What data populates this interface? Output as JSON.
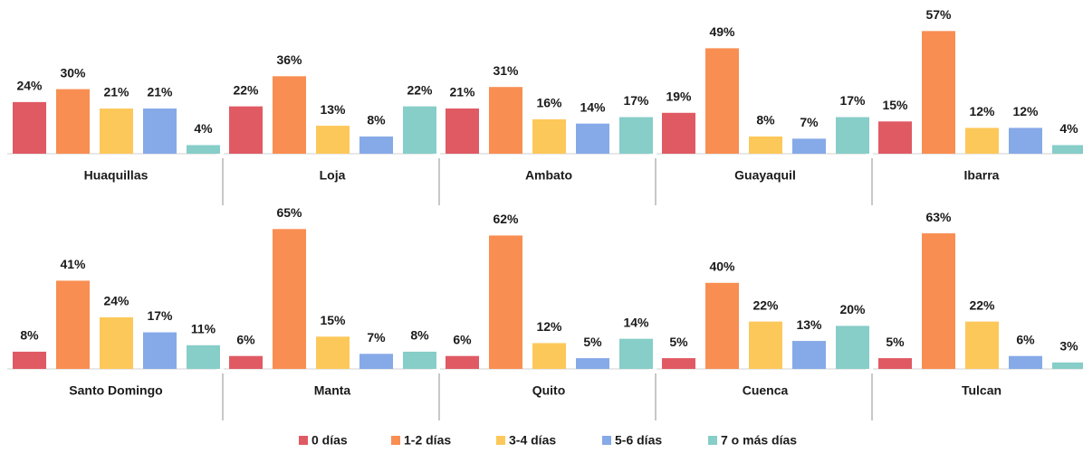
{
  "chart_data": {
    "type": "bar",
    "categories": [
      "Huaquillas",
      "Loja",
      "Ambato",
      "Guayaquil",
      "Ibarra",
      "Santo Domingo",
      "Manta",
      "Quito",
      "Cuenca",
      "Tulcan"
    ],
    "series": [
      {
        "name": "0 días",
        "color": "#e05a63",
        "values": [
          24,
          22,
          21,
          19,
          15,
          8,
          6,
          6,
          5,
          5
        ],
        "value_labels": [
          "24%",
          "22%",
          "21%",
          "19%",
          "15%",
          "8%",
          "6%",
          "6%",
          "5%",
          "5%"
        ]
      },
      {
        "name": "1-2 días",
        "color": "#f98e52",
        "values": [
          30,
          36,
          31,
          49,
          57,
          41,
          65,
          62,
          40,
          63
        ],
        "value_labels": [
          "30%",
          "36%",
          "31%",
          "49%",
          "57%",
          "41%",
          "65%",
          "62%",
          "40%",
          "63%"
        ]
      },
      {
        "name": "3-4 días",
        "color": "#fdc85a",
        "values": [
          21,
          13,
          16,
          8,
          12,
          24,
          15,
          12,
          22,
          22
        ],
        "value_labels": [
          "21%",
          "13%",
          "16%",
          "8%",
          "12%",
          "24%",
          "15%",
          "12%",
          "22%",
          "22%"
        ]
      },
      {
        "name": "5-6 días",
        "color": "#86a9e8",
        "values": [
          21,
          8,
          14,
          7,
          12,
          17,
          7,
          5,
          13,
          6
        ],
        "value_labels": [
          "21%",
          "8%",
          "14%",
          "7%",
          "12%",
          "17%",
          "7%",
          "5%",
          "13%",
          "6%"
        ]
      },
      {
        "name": "7 o más días",
        "color": "#87cdc8",
        "values": [
          4,
          22,
          17,
          17,
          4,
          11,
          8,
          14,
          20,
          3
        ],
        "value_labels": [
          "4%",
          "22%",
          "17%",
          "17%",
          "4%",
          "11%",
          "8%",
          "14%",
          "20%",
          "3%"
        ]
      }
    ]
  }
}
